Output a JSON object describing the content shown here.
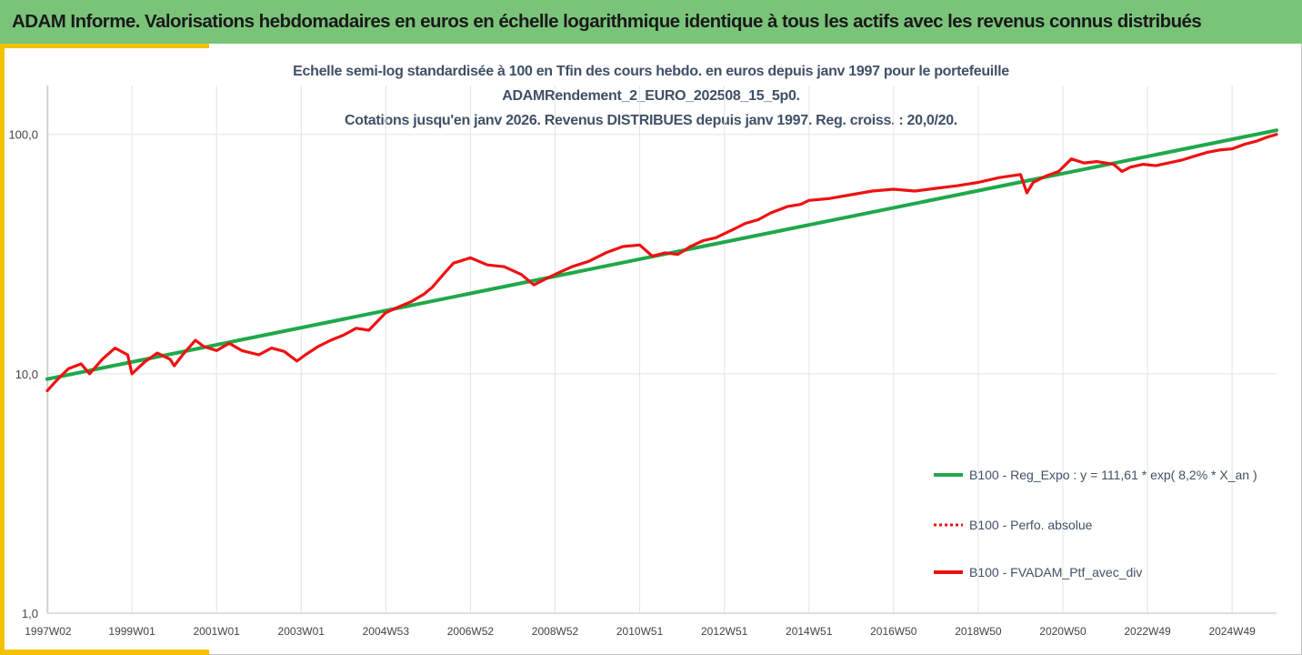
{
  "header": {
    "title": "ADAM Informe. Valorisations hebdomadaires en euros en échelle logarithmique identique à tous les actifs avec les revenus connus distribués"
  },
  "colors": {
    "header_bg": "#7ac47a",
    "accent": "#f2c200",
    "regression": "#1fa84a",
    "portfolio": "#ee1111"
  },
  "chart_data": {
    "type": "line",
    "title_lines": [
      "Echelle semi-log standardisée à 100 en Tfin des cours hebdo.  en euros depuis janv 1997 pour le portefeuille",
      "ADAMRendement_2_EURO_202508_15_5p0.",
      "Cotations jusqu'en janv 2026. Revenus DISTRIBUES depuis janv 1997. Reg. croiss. : 20,0/20."
    ],
    "y_scale": "log",
    "ylim": [
      1,
      160
    ],
    "y_ticks": [
      1,
      10,
      100
    ],
    "y_tick_labels": [
      "1,0",
      "10,0",
      "100,0"
    ],
    "xlim": [
      1997.0,
      2026.05
    ],
    "x_tick_labels": [
      "1997W02",
      "1999W01",
      "2001W01",
      "2003W01",
      "2004W53",
      "2006W52",
      "2008W52",
      "2010W51",
      "2012W51",
      "2014W51",
      "2016W50",
      "2018W50",
      "2020W50",
      "2022W49",
      "2024W49"
    ],
    "x_tick_positions": [
      1997.02,
      1999.0,
      2001.0,
      2003.0,
      2005.0,
      2007.0,
      2009.0,
      2011.0,
      2013.0,
      2015.0,
      2017.0,
      2019.0,
      2021.0,
      2023.0,
      2025.0
    ],
    "grid": true,
    "legend_position": "bottom-right",
    "series": [
      {
        "name": "B100 - Reg_Expo : y = 111,61 * exp( 8,2% *  X_an )",
        "style": "solid",
        "x": [
          1997.0,
          2026.05
        ],
        "y": [
          9.5,
          104
        ]
      },
      {
        "name": "B100 - Perfo. absolue",
        "style": "dotted",
        "x": [],
        "y": []
      },
      {
        "name": "B100 - FVADAM_Ptf_avec_div",
        "style": "solid",
        "x": [
          1997.0,
          1997.25,
          1997.5,
          1997.8,
          1998.0,
          1998.3,
          1998.6,
          1998.9,
          1999.0,
          1999.3,
          1999.6,
          1999.9,
          2000.0,
          2000.2,
          2000.5,
          2000.7,
          2001.0,
          2001.3,
          2001.6,
          2002.0,
          2002.3,
          2002.6,
          2002.9,
          2003.1,
          2003.4,
          2003.7,
          2004.0,
          2004.3,
          2004.6,
          2005.0,
          2005.3,
          2005.6,
          2005.9,
          2006.1,
          2006.4,
          2006.6,
          2007.0,
          2007.4,
          2007.8,
          2008.2,
          2008.5,
          2008.8,
          2009.1,
          2009.4,
          2009.8,
          2010.2,
          2010.6,
          2011.0,
          2011.3,
          2011.6,
          2011.9,
          2012.2,
          2012.5,
          2012.8,
          2013.2,
          2013.5,
          2013.8,
          2014.1,
          2014.5,
          2014.8,
          2015.0,
          2015.5,
          2016.0,
          2016.5,
          2017.0,
          2017.5,
          2018.0,
          2018.5,
          2019.0,
          2019.5,
          2020.0,
          2020.15,
          2020.3,
          2020.6,
          2020.9,
          2021.2,
          2021.5,
          2021.8,
          2022.2,
          2022.4,
          2022.6,
          2022.9,
          2023.2,
          2023.5,
          2023.8,
          2024.1,
          2024.4,
          2024.7,
          2025.0,
          2025.3,
          2025.6,
          2025.8,
          2026.05
        ],
        "y": [
          8.5,
          9.5,
          10.5,
          11.0,
          10.0,
          11.5,
          12.8,
          12.0,
          10.0,
          11.2,
          12.2,
          11.5,
          10.8,
          12.0,
          13.8,
          13.0,
          12.5,
          13.4,
          12.5,
          12.0,
          12.8,
          12.4,
          11.3,
          12.0,
          13.0,
          13.8,
          14.5,
          15.5,
          15.2,
          18.0,
          19.0,
          20.0,
          21.5,
          23.0,
          26.5,
          29.0,
          30.5,
          28.5,
          28.0,
          26.0,
          23.5,
          25.0,
          26.5,
          28.0,
          29.5,
          32.0,
          34.0,
          34.5,
          31.0,
          32.0,
          31.5,
          34.0,
          36.0,
          37.0,
          40.0,
          42.5,
          44.0,
          47.0,
          50.0,
          51.0,
          53.0,
          54.0,
          56.0,
          58.0,
          59.0,
          58.0,
          59.5,
          61.0,
          63.0,
          66.0,
          68.0,
          57.0,
          63.0,
          67.0,
          70.0,
          79.0,
          76.0,
          77.0,
          75.0,
          70.0,
          73.0,
          75.0,
          74.0,
          76.0,
          78.0,
          81.0,
          84.0,
          86.0,
          87.0,
          91.0,
          94.0,
          97.0,
          100.0
        ]
      }
    ]
  }
}
